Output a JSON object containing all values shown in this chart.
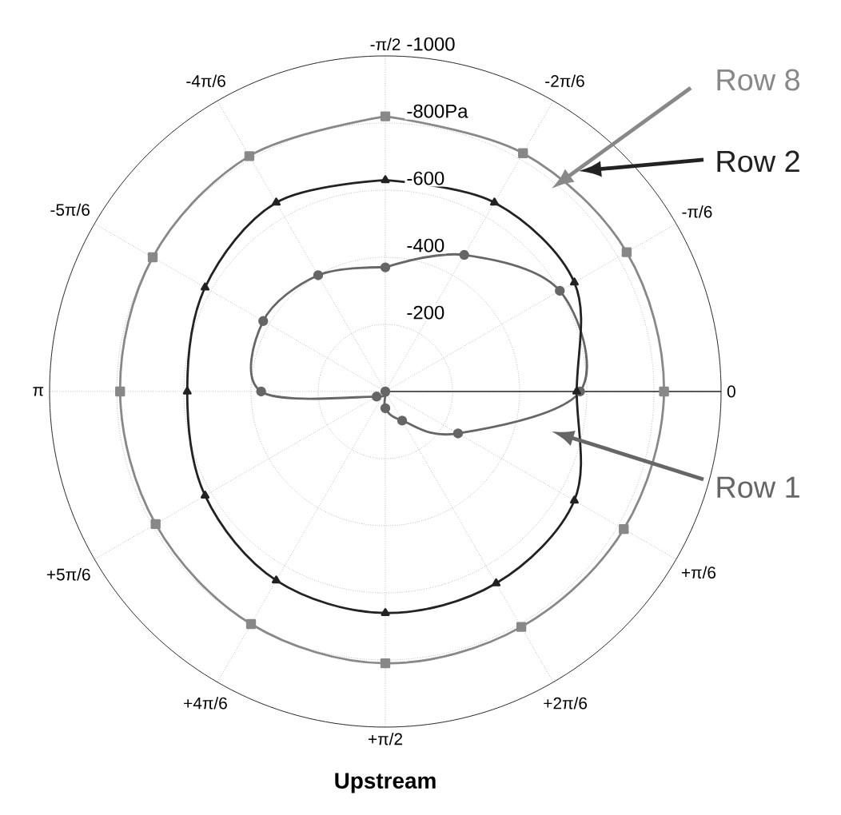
{
  "chart_data": {
    "type": "radar",
    "xlabel": "Upstream",
    "categories": [
      "-π/2",
      "-2π/6",
      "-π/6",
      "0",
      "+π/6",
      "+2π/6",
      "+π/2",
      "+4π/6",
      "+5π/6",
      "π",
      "-5π/6",
      "-4π/6"
    ],
    "ylim": [
      0,
      -1000
    ],
    "yticks": [
      -200,
      -400,
      -600,
      {
        "value": -800,
        "label": "-800Pa"
      },
      -1000
    ],
    "grid": true,
    "series": [
      {
        "name": "Row 8",
        "color": "#888888",
        "marker": "square",
        "values": [
          -820,
          -820,
          -830,
          -830,
          -820,
          -810,
          -810,
          -800,
          -790,
          -790,
          -800,
          -810
        ]
      },
      {
        "name": "Row 2",
        "color": "#222222",
        "marker": "triangle",
        "values": [
          -630,
          -650,
          -650,
          -570,
          -650,
          -660,
          -660,
          -650,
          -620,
          -590,
          -620,
          -650
        ]
      },
      {
        "name": "Row 1",
        "color": "#666666",
        "marker": "circle",
        "values": [
          -370,
          -470,
          -600,
          -580,
          -250,
          -100,
          -50,
          0,
          -30,
          -370,
          -420,
          -400
        ]
      }
    ]
  }
}
